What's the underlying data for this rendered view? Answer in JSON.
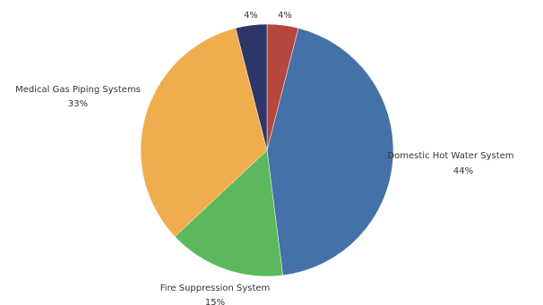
{
  "chart_data": {
    "type": "pie",
    "title": "",
    "legend": "none",
    "slices": [
      {
        "label": "",
        "value": 4,
        "value_label": "4%",
        "color": "#b5473d"
      },
      {
        "label": "Domestic Hot Water System",
        "value": 44,
        "value_label": "44%",
        "color": "#4472a8"
      },
      {
        "label": "Fire Suppression System",
        "value": 15,
        "value_label": "15%",
        "color": "#5cb85c"
      },
      {
        "label": "Medical Gas Piping Systems",
        "value": 33,
        "value_label": "33%",
        "color": "#f0ad4e"
      },
      {
        "label": "",
        "value": 4,
        "value_label": "4%",
        "color": "#2e3568"
      }
    ]
  }
}
